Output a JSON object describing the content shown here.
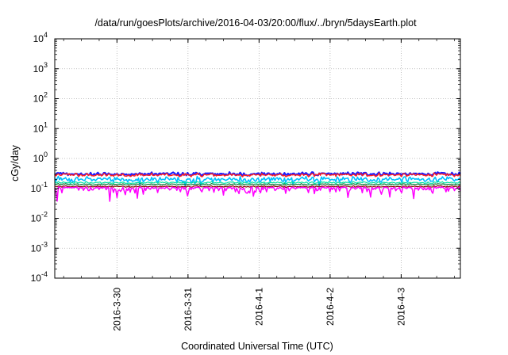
{
  "chart_data": {
    "type": "line",
    "title": "/data/run/goesPlots/archive/2016-04-03/20:00/flux/../bryn/5daysEarth.plot",
    "xlabel": "Coordinated Universal Time (UTC)",
    "ylabel": "cGy/day",
    "yscale": "log",
    "ylim": [
      0.0001,
      10000
    ],
    "y_ticks": [
      {
        "value": 0.0001,
        "base": "10",
        "exp": "-4"
      },
      {
        "value": 0.001,
        "base": "10",
        "exp": "-3"
      },
      {
        "value": 0.01,
        "base": "10",
        "exp": "-2"
      },
      {
        "value": 0.1,
        "base": "10",
        "exp": "-1"
      },
      {
        "value": 1,
        "base": "10",
        "exp": "0"
      },
      {
        "value": 10,
        "base": "10",
        "exp": "1"
      },
      {
        "value": 100,
        "base": "10",
        "exp": "2"
      },
      {
        "value": 1000,
        "base": "10",
        "exp": "3"
      },
      {
        "value": 10000,
        "base": "10",
        "exp": "4"
      }
    ],
    "xlim": [
      "2016-03-29 03:00",
      "2016-04-03 20:00"
    ],
    "x_ticks": [
      {
        "label": "2016-3-30",
        "value": "2016-03-30 00:00"
      },
      {
        "label": "2016-3-31",
        "value": "2016-03-31 00:00"
      },
      {
        "label": "2016-4-1",
        "value": "2016-04-01 00:00"
      },
      {
        "label": "2016-4-2",
        "value": "2016-04-02 00:00"
      },
      {
        "label": "2016-4-3",
        "value": "2016-04-03 00:00"
      }
    ],
    "grid": true,
    "series": [
      {
        "color": "#1a1aff",
        "level": 0.3,
        "lo": 0.22,
        "hi": 0.42,
        "width": 2.2
      },
      {
        "color": "#ff2020",
        "level": 0.28,
        "lo": 0.21,
        "hi": 0.4,
        "width": 1.4
      },
      {
        "color": "#00bfff",
        "level": 0.2,
        "lo": 0.12,
        "hi": 0.34,
        "width": 1.6
      },
      {
        "color": "#00e0a0",
        "level": 0.155,
        "lo": 0.13,
        "hi": 0.19,
        "width": 1.2
      },
      {
        "color": "#0a7a3a",
        "level": 0.135,
        "lo": 0.12,
        "hi": 0.16,
        "width": 1.2
      },
      {
        "color": "#8b0000",
        "level": 0.115,
        "lo": 0.1,
        "hi": 0.135,
        "width": 1.2
      },
      {
        "color": "#ff00ff",
        "level": 0.105,
        "lo": 0.035,
        "hi": 0.12,
        "width": 1.5
      }
    ]
  }
}
